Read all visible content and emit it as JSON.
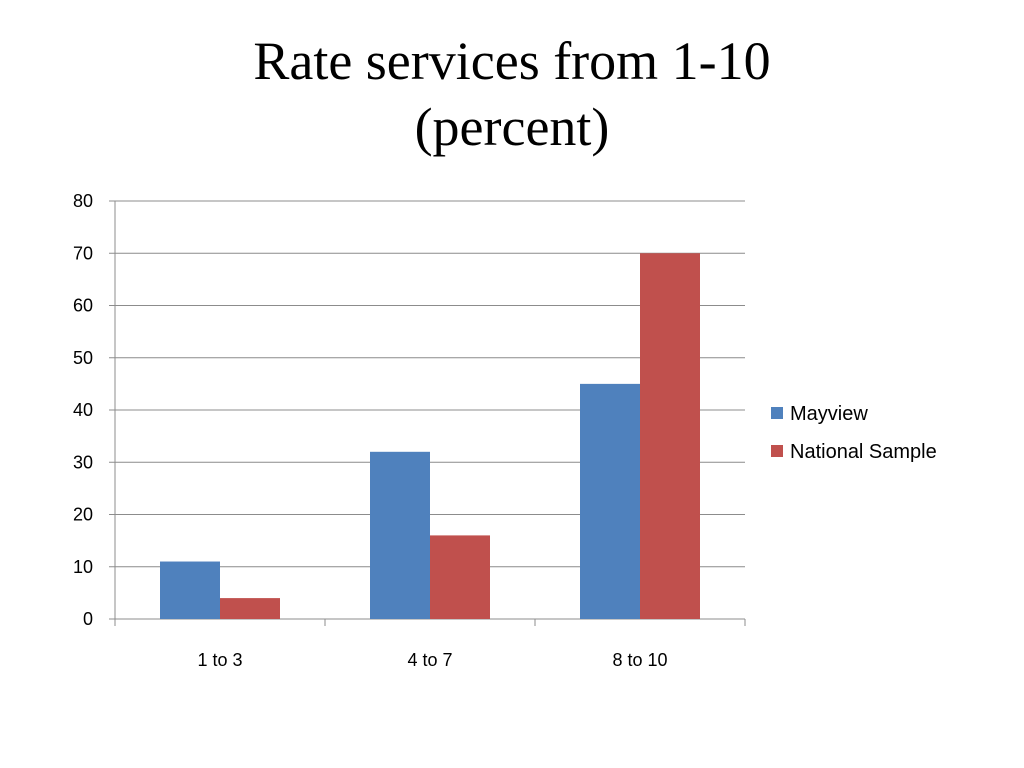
{
  "slide": {
    "title_line1": "Rate services from 1-10",
    "title_line2": "(percent)"
  },
  "chart_data": {
    "type": "bar",
    "title": "Rate services from 1-10 (percent)",
    "categories": [
      "1 to 3",
      "4 to 7",
      "8 to 10"
    ],
    "series": [
      {
        "name": "Mayview",
        "values": [
          11,
          32,
          45
        ],
        "color": "#4F81BD"
      },
      {
        "name": "National Sample",
        "values": [
          4,
          16,
          70
        ],
        "color": "#C0504D"
      }
    ],
    "ylim": [
      0,
      80
    ],
    "yticks": [
      0,
      10,
      20,
      30,
      40,
      50,
      60,
      70,
      80
    ],
    "grid": true,
    "legend": "right",
    "xlabel": "",
    "ylabel": ""
  }
}
